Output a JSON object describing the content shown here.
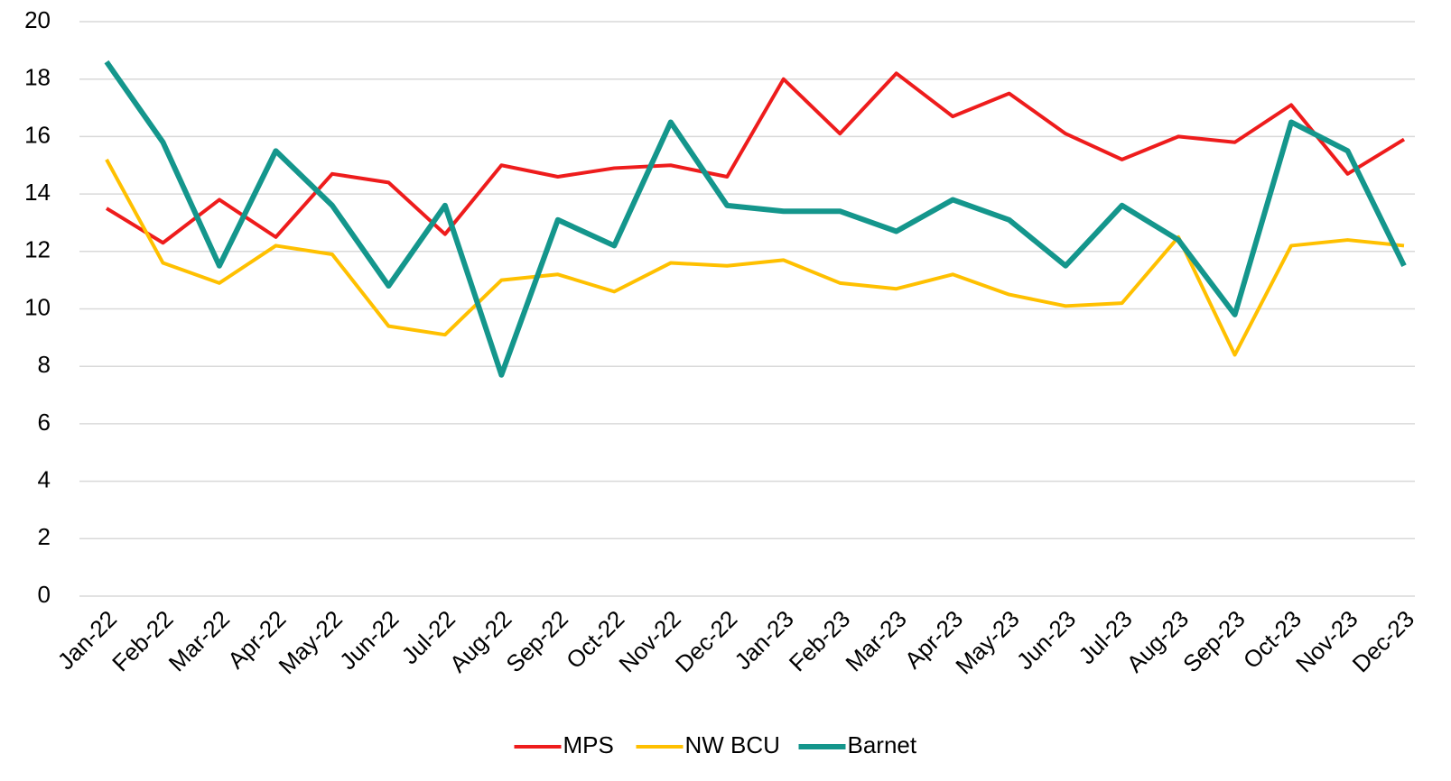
{
  "chart_data": {
    "type": "line",
    "categories": [
      "Jan-22",
      "Feb-22",
      "Mar-22",
      "Apr-22",
      "May-22",
      "Jun-22",
      "Jul-22",
      "Aug-22",
      "Sep-22",
      "Oct-22",
      "Nov-22",
      "Dec-22",
      "Jan-23",
      "Feb-23",
      "Mar-23",
      "Apr-23",
      "May-23",
      "Jun-23",
      "Jul-23",
      "Aug-23",
      "Sep-23",
      "Oct-23",
      "Nov-23",
      "Dec-23"
    ],
    "series": [
      {
        "name": "MPS",
        "color": "#ee1c1c",
        "values": [
          13.5,
          12.3,
          13.8,
          12.5,
          14.7,
          14.4,
          12.6,
          15.0,
          14.6,
          14.9,
          15.0,
          14.6,
          18.0,
          16.1,
          18.2,
          16.7,
          17.5,
          16.1,
          15.2,
          16.0,
          15.8,
          17.1,
          14.7,
          15.9
        ]
      },
      {
        "name": "NW BCU",
        "color": "#ffc000",
        "values": [
          15.2,
          11.6,
          10.9,
          12.2,
          11.9,
          9.4,
          9.1,
          11.0,
          11.2,
          10.6,
          11.6,
          11.5,
          11.7,
          10.9,
          10.7,
          11.2,
          10.5,
          10.1,
          10.2,
          12.5,
          8.4,
          12.2,
          12.4,
          12.2
        ]
      },
      {
        "name": "Barnet",
        "color": "#14968c",
        "values": [
          18.6,
          15.8,
          11.5,
          15.5,
          13.6,
          10.8,
          13.6,
          7.7,
          13.1,
          12.2,
          16.5,
          13.6,
          13.4,
          13.4,
          12.7,
          13.8,
          13.1,
          11.5,
          13.6,
          12.4,
          9.8,
          16.5,
          15.5,
          11.5
        ]
      }
    ],
    "ylim": [
      0,
      20
    ],
    "yticks": [
      0,
      2,
      4,
      6,
      8,
      10,
      12,
      14,
      16,
      18,
      20
    ],
    "grid": true,
    "legend": "bottom"
  }
}
